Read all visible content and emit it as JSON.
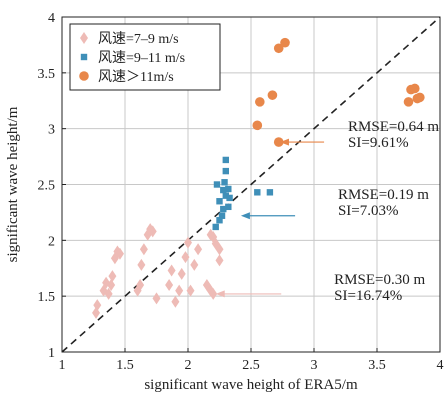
{
  "chart_data": {
    "type": "scatter",
    "xlabel": "significant wave height of ERA5/m",
    "ylabel": "significant wave height/m",
    "xlim": [
      1,
      4
    ],
    "ylim": [
      1,
      4
    ],
    "xticks": [
      1,
      1.5,
      2,
      2.5,
      3,
      3.5,
      4
    ],
    "yticks": [
      1,
      1.5,
      2,
      2.5,
      3,
      3.5,
      4
    ],
    "xtick_labels": [
      "1",
      "1.5",
      "2",
      "2.5",
      "3",
      "3.5",
      "4"
    ],
    "ytick_labels": [
      "1",
      "1.5",
      "2",
      "2.5",
      "3",
      "3.5",
      "4"
    ],
    "grid": true,
    "legend_position": "top-left",
    "reference_line": {
      "style": "dashed",
      "color": "#222222",
      "points": [
        [
          1,
          1
        ],
        [
          4,
          4
        ]
      ]
    },
    "series": [
      {
        "name": "风速=7–9 m/s",
        "marker": "diamond",
        "color": "#eebbb6",
        "points": [
          [
            1.27,
            1.35
          ],
          [
            1.28,
            1.42
          ],
          [
            1.33,
            1.55
          ],
          [
            1.35,
            1.62
          ],
          [
            1.37,
            1.52
          ],
          [
            1.39,
            1.6
          ],
          [
            1.4,
            1.68
          ],
          [
            1.42,
            1.84
          ],
          [
            1.44,
            1.9
          ],
          [
            1.46,
            1.88
          ],
          [
            1.6,
            1.55
          ],
          [
            1.62,
            1.6
          ],
          [
            1.63,
            1.78
          ],
          [
            1.65,
            1.92
          ],
          [
            1.68,
            2.05
          ],
          [
            1.7,
            2.1
          ],
          [
            1.72,
            2.08
          ],
          [
            1.75,
            1.48
          ],
          [
            1.85,
            1.6
          ],
          [
            1.87,
            1.73
          ],
          [
            1.9,
            1.45
          ],
          [
            1.93,
            1.55
          ],
          [
            1.95,
            1.7
          ],
          [
            1.98,
            1.85
          ],
          [
            2.0,
            1.98
          ],
          [
            2.02,
            1.55
          ],
          [
            2.05,
            1.78
          ],
          [
            2.08,
            1.92
          ],
          [
            2.15,
            1.6
          ],
          [
            2.18,
            1.55
          ],
          [
            2.18,
            2.05
          ],
          [
            2.2,
            1.52
          ],
          [
            2.2,
            2.03
          ],
          [
            2.22,
            1.97
          ],
          [
            2.25,
            1.92
          ],
          [
            2.25,
            1.82
          ]
        ]
      },
      {
        "name": "风速=9–11 m/s",
        "marker": "square",
        "color": "#3f8fb8",
        "points": [
          [
            2.22,
            2.12
          ],
          [
            2.23,
            2.5
          ],
          [
            2.25,
            2.18
          ],
          [
            2.25,
            2.35
          ],
          [
            2.27,
            2.22
          ],
          [
            2.28,
            2.28
          ],
          [
            2.28,
            2.45
          ],
          [
            2.29,
            2.52
          ],
          [
            2.3,
            2.4
          ],
          [
            2.3,
            2.62
          ],
          [
            2.3,
            2.72
          ],
          [
            2.32,
            2.46
          ],
          [
            2.32,
            2.3
          ],
          [
            2.33,
            2.38
          ],
          [
            2.55,
            2.43
          ],
          [
            2.65,
            2.43
          ]
        ]
      },
      {
        "name": "风速＞11m/s",
        "marker": "circle",
        "color": "#e8874a",
        "points": [
          [
            2.55,
            3.03
          ],
          [
            2.57,
            3.24
          ],
          [
            2.67,
            3.3
          ],
          [
            2.72,
            2.88
          ],
          [
            2.72,
            3.72
          ],
          [
            2.77,
            3.77
          ],
          [
            3.75,
            3.24
          ],
          [
            3.77,
            3.35
          ],
          [
            3.8,
            3.36
          ],
          [
            3.82,
            3.27
          ],
          [
            3.84,
            3.28
          ]
        ]
      }
    ],
    "annotations": [
      {
        "lines": [
          "RMSE=0.64 m",
          "SI=9.61%"
        ],
        "color": "#e8874a",
        "arrow_to": [
          2.73,
          2.88
        ]
      },
      {
        "lines": [
          "RMSE=0.19 m",
          "SI=7.03%"
        ],
        "color": "#3f8fb8",
        "arrow_to": [
          2.42,
          2.22
        ]
      },
      {
        "lines": [
          "RMSE=0.30 m",
          "SI=16.74%"
        ],
        "color": "#eebbb6",
        "arrow_to": [
          2.22,
          1.52
        ]
      }
    ]
  }
}
